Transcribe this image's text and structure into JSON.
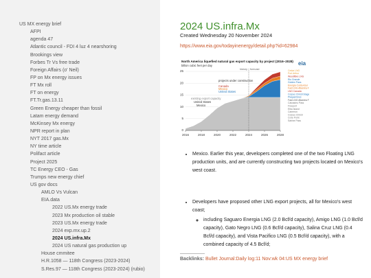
{
  "sidebar": {
    "tree": {
      "label": "US MX energy brief",
      "children": [
        {
          "label": "AFPI"
        },
        {
          "label": "agenda 47"
        },
        {
          "label": "Atlantic council - FDI 4 luz 4 nearshoring"
        },
        {
          "label": "Brookings view"
        },
        {
          "label": "Forbes Tr Vs free trade"
        },
        {
          "label": "Foreign Affairs (o' Neil)"
        },
        {
          "label": "FP on Mx energy issues"
        },
        {
          "label": "FT Mx roll"
        },
        {
          "label": "FT on energy"
        },
        {
          "label": "FT.Tr.gas.13.11"
        },
        {
          "label": "Green Energy cheaper than fossil"
        },
        {
          "label": "Latam energy demand"
        },
        {
          "label": "McKinsey Mx energy"
        },
        {
          "label": "NPR report in plan"
        },
        {
          "label": "NYT 2017 gas.Mx"
        },
        {
          "label": "NY time article"
        },
        {
          "label": "Polifact article"
        },
        {
          "label": "Project 2025"
        },
        {
          "label": "TC Energy CEO - Gas"
        },
        {
          "label": "Trumps new energy chief"
        },
        {
          "label": "US gov docs",
          "children": [
            {
              "label": "AMLO Vs Vulcan"
            },
            {
              "label": "EIA.data",
              "children": [
                {
                  "label": "2022 US.Mx energy trade"
                },
                {
                  "label": "2023 Mx production oil stable"
                },
                {
                  "label": "2023 US.Mx energy trade"
                },
                {
                  "label": "2024 exp.mx.up.2"
                },
                {
                  "label": "2024 US.infra.Mx",
                  "active": true
                },
                {
                  "label": "2024 US natural gas production up"
                }
              ]
            },
            {
              "label": "House cmmitee"
            },
            {
              "label": "H.R.1058 — 118th Congress (2023-2024)"
            },
            {
              "label": "S.Res.97 — 118th Congress (2023-2024) (rubio)"
            }
          ]
        }
      ]
    }
  },
  "note": {
    "title": "2024 US.infra.Mx",
    "created": "Created Wednesday 20 November 2024",
    "link": "https://www.eia.gov/todayinenergy/detail.php?id=62984",
    "bullets": [
      {
        "text": "Mexico. Earlier this year, developers completed one of the two Floating LNG production units, and are currently constructing two projects located on Mexico's west coast."
      },
      {
        "text": "Developers have proposed other LNG export projects, all for Mexico's west coast;",
        "children": [
          "including Saguaro Energia LNG (2.0 Bcf/d capacity), Amigo LNG (1.0 Bcf/d capacity), Gato Negro LNG (0.6 Bcf/d capacity), Salina Cruz LNG (0.4 Bcf/d capacity), and Vista Pacifico LNG (0.5 Bcf/d capacity), with a combined capacity of 4.5 Bcf/d;"
        ]
      }
    ],
    "backlinks_label": "Backlinks:",
    "backlinks": "Bullet Journal:Daily log:11 Nov:wk 04:US MX energy brief"
  },
  "chart_data": {
    "type": "stacked-area",
    "title": "North America liquefied natural gas export capacity by project (2016–2028)",
    "subtitle": "billion cubic feet per day",
    "logo": "eia",
    "history_label": "history",
    "forecast_label": "forecast",
    "forecast_start": 2024,
    "x": [
      2016,
      2017,
      2018,
      2019,
      2020,
      2021,
      2022,
      2023,
      2024,
      2025,
      2026,
      2027,
      2028
    ],
    "xlim": [
      2016,
      2028
    ],
    "xticks": [
      2016,
      2018,
      2020,
      2022,
      2024,
      2026,
      2028
    ],
    "ylim": [
      0,
      25
    ],
    "yticks": [
      0,
      5,
      10,
      15,
      20,
      25
    ],
    "grid": true,
    "series": [
      {
        "name": "existing export capacity",
        "color": "#c4c4c4",
        "values": [
          0.9,
          2.0,
          3.8,
          6.5,
          9.5,
          11.5,
          12.5,
          13.5,
          14,
          14,
          14,
          14,
          14
        ]
      },
      {
        "name": "United States",
        "color": "#2a7bbf",
        "values": [
          0,
          0,
          0,
          0,
          0,
          0,
          0,
          0,
          0.3,
          2.5,
          5.0,
          6.8,
          7.5
        ]
      },
      {
        "name": "Mexico",
        "color": "#e67e22",
        "values": [
          0,
          0,
          0,
          0,
          0,
          0,
          0,
          0,
          0.4,
          0.8,
          1.0,
          1.3,
          1.5
        ]
      },
      {
        "name": "Canada",
        "color": "#c0392b",
        "values": [
          0,
          0,
          0,
          0,
          0,
          0,
          0,
          0,
          0,
          0.8,
          1.4,
          1.7,
          1.8
        ]
      }
    ],
    "annotations": [
      "projects under construction",
      "United States",
      "Mexico"
    ],
    "legend_entries": [
      {
        "label": "Cedar LNG",
        "color": "#e8a33d"
      },
      {
        "label": "Port Arthur",
        "color": "#e8a33d"
      },
      {
        "label": "Woodfibre LNG",
        "color": "#c0392b"
      },
      {
        "label": "Rio Grande",
        "color": "#2a7bbf"
      },
      {
        "label": "Golden Pass",
        "color": "#2a7bbf"
      },
      {
        "label": "Energia Costa Azul",
        "color": "#e67e22"
      },
      {
        "label": "Fast LNG Altamira FLNG2",
        "color": "#e67e22"
      },
      {
        "label": "LNG Canada",
        "color": "#c0392b"
      },
      {
        "label": "Corpus Christi Stage III",
        "color": "#2a7bbf"
      },
      {
        "label": "Plaquemines",
        "color": "#2a7bbf"
      },
      {
        "label": "Fast LNG Altamira FLNG1",
        "color": "#555555"
      },
      {
        "label": "Calcasieu Pass",
        "color": "#777777"
      },
      {
        "label": "Freeport",
        "color": "#777777"
      },
      {
        "label": "Elba Island",
        "color": "#777777"
      },
      {
        "label": "Cameron",
        "color": "#777777"
      },
      {
        "label": "Corpus Christi",
        "color": "#777777"
      },
      {
        "label": "Cove Point",
        "color": "#777777"
      },
      {
        "label": "Sabine Pass",
        "color": "#777777"
      }
    ]
  }
}
